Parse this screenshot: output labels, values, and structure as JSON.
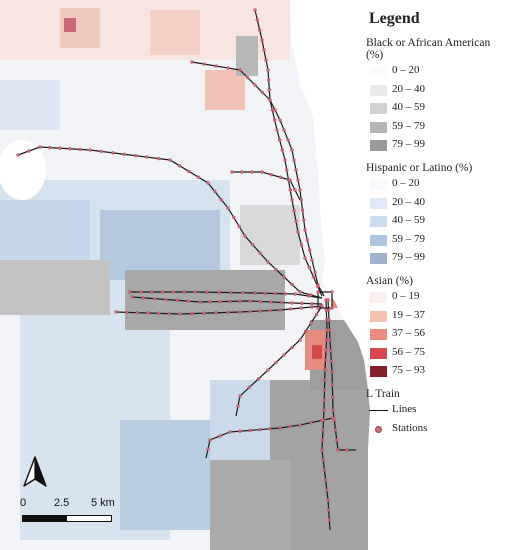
{
  "legend": {
    "title": "Legend",
    "sections": [
      {
        "heading": "Black or African American (%)",
        "items": [
          {
            "label": "0 – 20",
            "color": "#fbfbfb"
          },
          {
            "label": "20 – 40",
            "color": "#e9e9e9"
          },
          {
            "label": "40 – 59",
            "color": "#d2d2d2"
          },
          {
            "label": "59 – 79",
            "color": "#b4b4b4"
          },
          {
            "label": "79 – 99",
            "color": "#9a9a9a"
          }
        ]
      },
      {
        "heading": "Hispanic or Latino (%)",
        "items": [
          {
            "label": "0 – 20",
            "color": "#f7f9fd"
          },
          {
            "label": "20 – 40",
            "color": "#e1e9f6"
          },
          {
            "label": "40 – 59",
            "color": "#cbdcee"
          },
          {
            "label": "59 – 79",
            "color": "#aec6e0"
          },
          {
            "label": "79 – 99",
            "color": "#9fb3cc"
          }
        ]
      },
      {
        "heading": "Asian (%)",
        "items": [
          {
            "label": "0 – 19",
            "color": "#fbeeee"
          },
          {
            "label": "19 – 37",
            "color": "#f5c2b0"
          },
          {
            "label": "37 – 56",
            "color": "#ec8c7e"
          },
          {
            "label": "56 – 75",
            "color": "#d7474f"
          },
          {
            "label": "75 – 93",
            "color": "#82202c"
          }
        ]
      }
    ],
    "train": {
      "heading": "L Train",
      "lines_label": "Lines",
      "stations_label": "Stations"
    }
  },
  "scale_bar": {
    "labels": [
      "0",
      "2.5",
      "5 km"
    ]
  },
  "colors": {
    "line": "#1a1a1a",
    "station": "#d36a7a",
    "water": "#ffffff"
  }
}
